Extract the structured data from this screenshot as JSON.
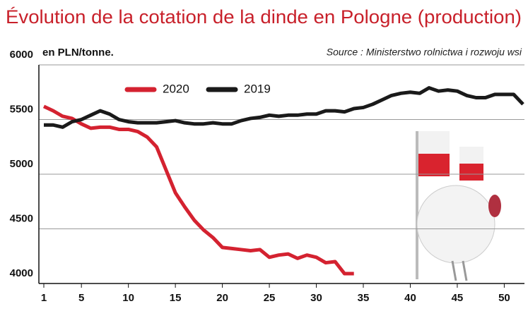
{
  "chart_data": {
    "type": "line",
    "title": "Évolution  de la cotation de la dinde en Pologne (production)",
    "unit_label": "en PLN/tonne.",
    "source": "Source : Ministerstwo rolnictwa i rozwoju wsi",
    "x": [
      1,
      2,
      3,
      4,
      5,
      6,
      7,
      8,
      9,
      10,
      11,
      12,
      13,
      14,
      15,
      16,
      17,
      18,
      19,
      20,
      21,
      22,
      23,
      24,
      25,
      26,
      27,
      28,
      29,
      30,
      31,
      32,
      33,
      34,
      35,
      36,
      37,
      38,
      39,
      40,
      41,
      42,
      43,
      44,
      45,
      46,
      47,
      48,
      49,
      50,
      51,
      52
    ],
    "series": [
      {
        "name": "2020",
        "color": "#d42230",
        "values": [
          5620,
          5580,
          5530,
          5510,
          5460,
          5420,
          5430,
          5430,
          5410,
          5410,
          5390,
          5340,
          5250,
          5040,
          4830,
          4700,
          4580,
          4490,
          4420,
          4330,
          4320,
          4310,
          4300,
          4310,
          4240,
          4260,
          4270,
          4230,
          4260,
          4240,
          4190,
          4200,
          4090,
          4090,
          null,
          null,
          null,
          null,
          null,
          null,
          null,
          null,
          null,
          null,
          null,
          null,
          null,
          null,
          null,
          null,
          null,
          null
        ]
      },
      {
        "name": "2019",
        "color": "#1a1a1a",
        "values": [
          5450,
          5450,
          5430,
          5480,
          5500,
          5540,
          5580,
          5550,
          5500,
          5480,
          5470,
          5470,
          5470,
          5480,
          5490,
          5470,
          5460,
          5460,
          5470,
          5460,
          5460,
          5490,
          5510,
          5520,
          5540,
          5530,
          5540,
          5540,
          5550,
          5550,
          5580,
          5580,
          5570,
          5600,
          5610,
          5640,
          5680,
          5720,
          5740,
          5750,
          5740,
          5790,
          5760,
          5770,
          5760,
          5720,
          5700,
          5700,
          5730,
          5730,
          5730,
          5640
        ]
      }
    ],
    "xlim": [
      1,
      52
    ],
    "xticks": [
      1,
      5,
      10,
      15,
      20,
      25,
      30,
      35,
      40,
      45,
      50
    ],
    "ylim": [
      4000,
      6000
    ],
    "yticks": [
      4000,
      4500,
      5000,
      5500,
      6000
    ],
    "grid": true,
    "legend": "top-left"
  }
}
